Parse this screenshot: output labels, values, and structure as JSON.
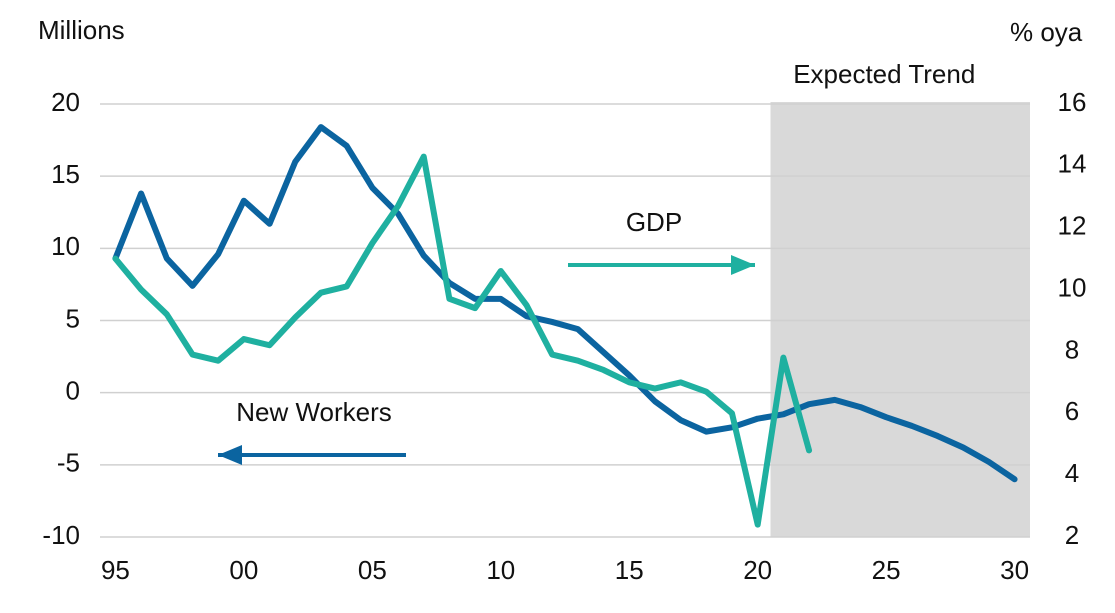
{
  "chart_data": {
    "type": "line",
    "y_label": "Millions",
    "y2_label": "% oya",
    "x": [
      1995,
      1996,
      1997,
      1998,
      1999,
      2000,
      2001,
      2002,
      2003,
      2004,
      2005,
      2006,
      2007,
      2008,
      2009,
      2010,
      2011,
      2012,
      2013,
      2014,
      2015,
      2016,
      2017,
      2018,
      2019,
      2020,
      2021,
      2022,
      2023,
      2024,
      2025,
      2026,
      2027,
      2028,
      2029,
      2030
    ],
    "series": [
      {
        "name": "New Workers",
        "color": "#0b64a0",
        "axis": "y",
        "values": [
          9.3,
          13.8,
          9.3,
          7.4,
          9.6,
          13.3,
          11.7,
          16.0,
          18.4,
          17.1,
          14.2,
          12.4,
          9.5,
          7.6,
          6.5,
          6.5,
          5.3,
          4.9,
          4.4,
          2.8,
          1.2,
          -0.6,
          -1.9,
          -2.7,
          -2.4,
          -1.8,
          -1.5,
          -0.8,
          -0.5,
          -1.0,
          -1.7,
          -2.3,
          -3.0,
          -3.8,
          -4.8,
          -6.0
        ]
      },
      {
        "name": "GDP",
        "color": "#1fb0a0",
        "axis": "y2",
        "values": [
          11.0,
          10.0,
          9.2,
          7.9,
          7.7,
          8.4,
          8.2,
          9.1,
          9.9,
          10.1,
          11.5,
          12.7,
          14.3,
          9.7,
          9.4,
          10.6,
          9.5,
          7.9,
          7.7,
          7.4,
          7.0,
          6.8,
          7.0,
          6.7,
          6.0,
          2.4,
          7.8,
          4.8,
          null,
          null,
          null,
          null,
          null,
          null,
          null,
          null
        ]
      }
    ],
    "shaded_region": {
      "label": "Expected Trend",
      "x": [
        2020.5,
        2030.6
      ],
      "color": "#d9d9d9"
    },
    "xlim": [
      1994.4,
      2030.6
    ],
    "xticks": [
      {
        "value": 1995,
        "label": "95"
      },
      {
        "value": 2000,
        "label": "00"
      },
      {
        "value": 2005,
        "label": "05"
      },
      {
        "value": 2010,
        "label": "10"
      },
      {
        "value": 2015,
        "label": "15"
      },
      {
        "value": 2020,
        "label": "20"
      },
      {
        "value": 2025,
        "label": "25"
      },
      {
        "value": 2030,
        "label": "30"
      }
    ],
    "ylim": [
      -10,
      20
    ],
    "yticks": [
      20,
      15,
      10,
      5,
      0,
      -5,
      -10
    ],
    "y2lim": [
      2,
      16
    ],
    "y2ticks": [
      16,
      14,
      12,
      10,
      8,
      6,
      4,
      2
    ],
    "grid": true
  }
}
